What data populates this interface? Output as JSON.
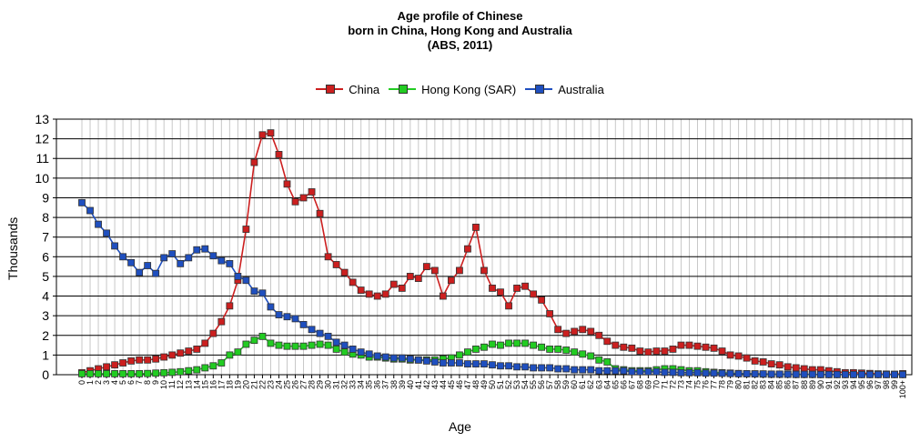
{
  "chart_data": {
    "type": "line",
    "title_lines": [
      "Age profile of Chinese",
      "born in China, Hong Kong and Australia",
      "(ABS, 2011)"
    ],
    "xlabel": "Age",
    "ylabel": "Thousands",
    "ylim": [
      0,
      13
    ],
    "y_ticks": [
      0,
      1,
      2,
      3,
      4,
      5,
      6,
      7,
      8,
      9,
      10,
      11,
      12,
      13
    ],
    "grid": true,
    "legend_position": "top-center",
    "categories": [
      "0",
      "1",
      "2",
      "3",
      "4",
      "5",
      "6",
      "7",
      "8",
      "9",
      "10",
      "11",
      "12",
      "13",
      "14",
      "15",
      "16",
      "17",
      "18",
      "19",
      "20",
      "21",
      "22",
      "23",
      "24",
      "25",
      "26",
      "27",
      "28",
      "29",
      "30",
      "31",
      "32",
      "33",
      "34",
      "35",
      "36",
      "37",
      "38",
      "39",
      "40",
      "41",
      "42",
      "43",
      "44",
      "45",
      "46",
      "47",
      "48",
      "49",
      "50",
      "51",
      "52",
      "53",
      "54",
      "55",
      "56",
      "57",
      "58",
      "59",
      "60",
      "61",
      "62",
      "63",
      "64",
      "65",
      "66",
      "67",
      "68",
      "69",
      "70",
      "71",
      "72",
      "73",
      "74",
      "75",
      "76",
      "77",
      "78",
      "79",
      "80",
      "81",
      "82",
      "83",
      "84",
      "85",
      "86",
      "87",
      "88",
      "89",
      "90",
      "91",
      "92",
      "93",
      "94",
      "95",
      "96",
      "97",
      "98",
      "99",
      "100+"
    ],
    "series": [
      {
        "name": "China",
        "color": "#cc1f1f",
        "values": [
          0.1,
          0.2,
          0.3,
          0.4,
          0.5,
          0.6,
          0.7,
          0.75,
          0.75,
          0.8,
          0.9,
          1.0,
          1.1,
          1.2,
          1.3,
          1.6,
          2.1,
          2.7,
          3.5,
          4.8,
          7.4,
          10.8,
          12.2,
          12.3,
          11.2,
          9.7,
          8.8,
          9.0,
          9.3,
          8.2,
          6.0,
          5.6,
          5.2,
          4.7,
          4.3,
          4.1,
          4.0,
          4.1,
          4.6,
          4.4,
          5.0,
          4.9,
          5.5,
          5.3,
          4.0,
          4.8,
          5.3,
          6.4,
          7.5,
          5.3,
          4.4,
          4.2,
          3.5,
          4.4,
          4.5,
          4.1,
          3.8,
          3.1,
          2.3,
          2.1,
          2.2,
          2.3,
          2.2,
          2.0,
          1.7,
          1.5,
          1.4,
          1.35,
          1.2,
          1.15,
          1.2,
          1.2,
          1.3,
          1.5,
          1.5,
          1.45,
          1.4,
          1.35,
          1.2,
          1.0,
          0.95,
          0.85,
          0.7,
          0.65,
          0.55,
          0.5,
          0.4,
          0.35,
          0.3,
          0.25,
          0.25,
          0.2,
          0.15,
          0.1,
          0.1,
          0.08,
          0.06,
          0.04,
          0.03,
          0.02,
          0.05
        ]
      },
      {
        "name": "Hong Kong (SAR)",
        "color": "#22cc22",
        "values": [
          0.05,
          0.05,
          0.05,
          0.05,
          0.05,
          0.05,
          0.05,
          0.05,
          0.06,
          0.08,
          0.1,
          0.12,
          0.15,
          0.2,
          0.25,
          0.35,
          0.45,
          0.6,
          1.0,
          1.15,
          1.55,
          1.75,
          1.95,
          1.6,
          1.5,
          1.45,
          1.45,
          1.45,
          1.5,
          1.55,
          1.5,
          1.3,
          1.15,
          1.05,
          1.0,
          0.9,
          0.9,
          0.85,
          0.8,
          0.8,
          0.75,
          0.75,
          0.75,
          0.75,
          0.8,
          0.85,
          1.0,
          1.15,
          1.3,
          1.4,
          1.55,
          1.5,
          1.6,
          1.6,
          1.6,
          1.5,
          1.4,
          1.3,
          1.3,
          1.25,
          1.15,
          1.05,
          0.95,
          0.75,
          0.65,
          0.3,
          0.25,
          0.2,
          0.2,
          0.2,
          0.25,
          0.3,
          0.3,
          0.25,
          0.2,
          0.2,
          0.15,
          0.12,
          0.1,
          0.08,
          0.06,
          0.05,
          0.04,
          0.03,
          0.02,
          0.02,
          0.02,
          0.01,
          0.01,
          0.01,
          0.01,
          0.01,
          0.01,
          0.01,
          0.01,
          0.01,
          0.01,
          0.01,
          0.01,
          0.01,
          0.01
        ]
      },
      {
        "name": "Australia",
        "color": "#1f4fbf",
        "values": [
          8.75,
          8.35,
          7.65,
          7.2,
          6.55,
          6.0,
          5.7,
          5.2,
          5.55,
          5.15,
          5.95,
          6.15,
          5.65,
          5.95,
          6.35,
          6.4,
          6.05,
          5.8,
          5.65,
          5.0,
          4.8,
          4.25,
          4.15,
          3.45,
          3.05,
          2.95,
          2.85,
          2.55,
          2.3,
          2.1,
          1.95,
          1.65,
          1.5,
          1.3,
          1.15,
          1.05,
          0.95,
          0.9,
          0.85,
          0.85,
          0.8,
          0.75,
          0.7,
          0.65,
          0.6,
          0.6,
          0.6,
          0.55,
          0.55,
          0.55,
          0.5,
          0.45,
          0.45,
          0.4,
          0.4,
          0.35,
          0.35,
          0.35,
          0.3,
          0.3,
          0.25,
          0.25,
          0.25,
          0.2,
          0.2,
          0.2,
          0.2,
          0.15,
          0.15,
          0.15,
          0.15,
          0.12,
          0.12,
          0.1,
          0.1,
          0.1,
          0.08,
          0.08,
          0.07,
          0.06,
          0.05,
          0.05,
          0.04,
          0.04,
          0.03,
          0.03,
          0.02,
          0.02,
          0.02,
          0.02,
          0.01,
          0.01,
          0.01,
          0.01,
          0.01,
          0.01,
          0.01,
          0.01,
          0.01,
          0.01,
          0.01
        ]
      }
    ]
  }
}
